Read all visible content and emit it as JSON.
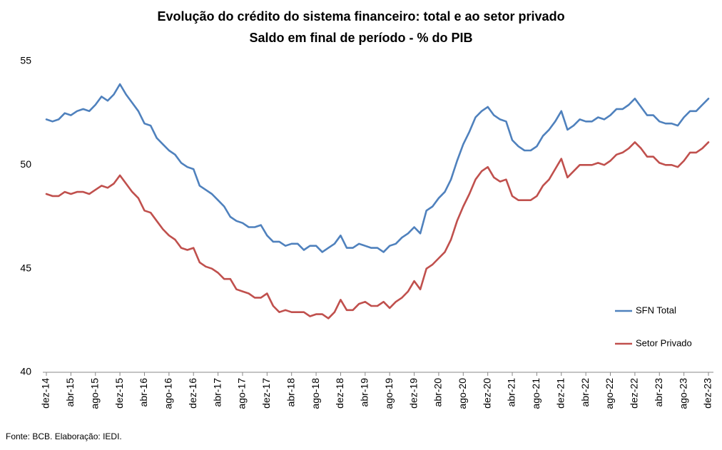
{
  "chart_data": {
    "type": "line",
    "title": "Evolução do crédito do sistema financeiro: total e ao setor privado",
    "subtitle": "Saldo em final de período -  % do PIB",
    "source": "Fonte: BCB. Elaboração: IEDI.",
    "categories": [
      "dez-14",
      null,
      null,
      null,
      "abr-15",
      null,
      null,
      null,
      "ago-15",
      null,
      null,
      null,
      "dez-15",
      null,
      null,
      null,
      "abr-16",
      null,
      null,
      null,
      "ago-16",
      null,
      null,
      null,
      "dez-16",
      null,
      null,
      null,
      "abr-17",
      null,
      null,
      null,
      "ago-17",
      null,
      null,
      null,
      "dez-17",
      null,
      null,
      null,
      "abr-18",
      null,
      null,
      null,
      "ago-18",
      null,
      null,
      null,
      "dez-18",
      null,
      null,
      null,
      "abr-19",
      null,
      null,
      null,
      "ago-19",
      null,
      null,
      null,
      "dez-19",
      null,
      null,
      null,
      "abr-20",
      null,
      null,
      null,
      "ago-20",
      null,
      null,
      null,
      "dez-20",
      null,
      null,
      null,
      "abr-21",
      null,
      null,
      null,
      "ago-21",
      null,
      null,
      null,
      "dez-21",
      null,
      null,
      null,
      "abr-22",
      null,
      null,
      null,
      "ago-22",
      null,
      null,
      null,
      "dez-22",
      null,
      null,
      null,
      "abr-23",
      null,
      null,
      null,
      "ago-23",
      null,
      null,
      null,
      "dez-23"
    ],
    "series": [
      {
        "name": "SFN Total",
        "color": "#4f81bd",
        "values": [
          52.2,
          52.1,
          52.2,
          52.5,
          52.4,
          52.6,
          52.7,
          52.6,
          52.9,
          53.3,
          53.1,
          53.4,
          53.9,
          53.4,
          53.0,
          52.6,
          52.0,
          51.9,
          51.3,
          51.0,
          50.7,
          50.5,
          50.1,
          49.9,
          49.8,
          49.0,
          48.8,
          48.6,
          48.3,
          48.0,
          47.5,
          47.3,
          47.2,
          47.0,
          47.0,
          47.1,
          46.6,
          46.3,
          46.3,
          46.1,
          46.2,
          46.2,
          45.9,
          46.1,
          46.1,
          45.8,
          46.0,
          46.2,
          46.6,
          46.0,
          46.0,
          46.2,
          46.1,
          46.0,
          46.0,
          45.8,
          46.1,
          46.2,
          46.5,
          46.7,
          47.0,
          46.7,
          47.8,
          48.0,
          48.4,
          48.7,
          49.3,
          50.2,
          51.0,
          51.6,
          52.3,
          52.6,
          52.8,
          52.4,
          52.2,
          52.1,
          51.2,
          50.9,
          50.7,
          50.7,
          50.9,
          51.4,
          51.7,
          52.1,
          52.6,
          51.7,
          51.9,
          52.2,
          52.1,
          52.1,
          52.3,
          52.2,
          52.4,
          52.7,
          52.7,
          52.9,
          53.2,
          52.8,
          52.4,
          52.4,
          52.1,
          52.0,
          52.0,
          51.9,
          52.3,
          52.6,
          52.6,
          52.9,
          53.2
        ]
      },
      {
        "name": "Setor Privado",
        "color": "#c0504d",
        "values": [
          48.6,
          48.5,
          48.5,
          48.7,
          48.6,
          48.7,
          48.7,
          48.6,
          48.8,
          49.0,
          48.9,
          49.1,
          49.5,
          49.1,
          48.7,
          48.4,
          47.8,
          47.7,
          47.3,
          46.9,
          46.6,
          46.4,
          46.0,
          45.9,
          46.0,
          45.3,
          45.1,
          45.0,
          44.8,
          44.5,
          44.5,
          44.0,
          43.9,
          43.8,
          43.6,
          43.6,
          43.8,
          43.2,
          42.9,
          43.0,
          42.9,
          42.9,
          42.9,
          42.7,
          42.8,
          42.8,
          42.6,
          42.9,
          43.5,
          43.0,
          43.0,
          43.3,
          43.4,
          43.2,
          43.2,
          43.4,
          43.1,
          43.4,
          43.6,
          43.9,
          44.4,
          44.0,
          45.0,
          45.2,
          45.5,
          45.8,
          46.4,
          47.3,
          48.0,
          48.6,
          49.3,
          49.7,
          49.9,
          49.4,
          49.2,
          49.3,
          48.5,
          48.3,
          48.3,
          48.3,
          48.5,
          49.0,
          49.3,
          49.8,
          50.3,
          49.4,
          49.7,
          50.0,
          50.0,
          50.0,
          50.1,
          50.0,
          50.2,
          50.5,
          50.6,
          50.8,
          51.1,
          50.8,
          50.4,
          50.4,
          50.1,
          50.0,
          50.0,
          49.9,
          50.2,
          50.6,
          50.6,
          50.8,
          51.1
        ]
      }
    ],
    "ylim": [
      40,
      55
    ],
    "yticks": [
      40,
      45,
      50,
      55
    ],
    "grid": false,
    "legend": "right"
  }
}
